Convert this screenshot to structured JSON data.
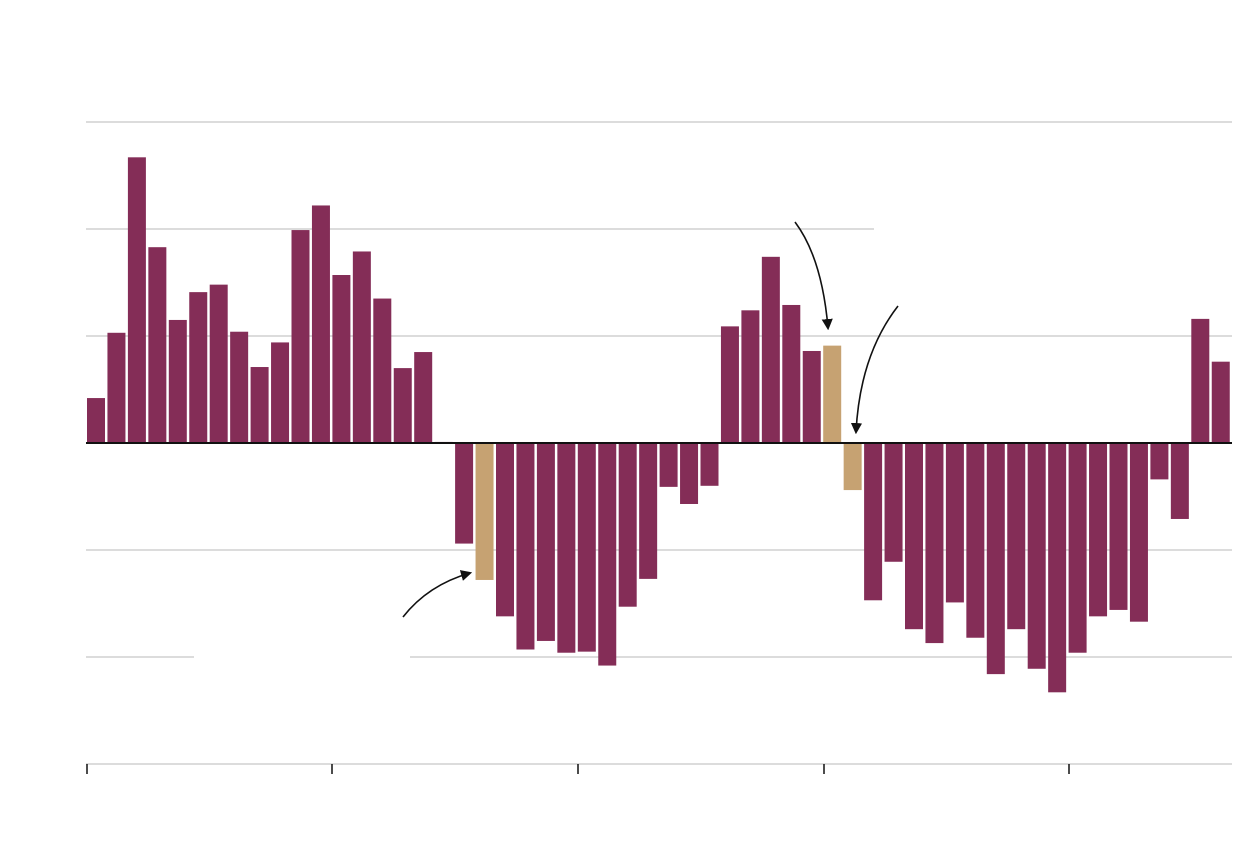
{
  "chart_data": {
    "type": "bar",
    "title": "",
    "xlabel": "",
    "ylabel": "",
    "ylim": [
      -3,
      3
    ],
    "grid": true,
    "legend": "none",
    "colors": {
      "primary": "#842d57",
      "highlight": "#c6a272",
      "grid": "#d0d0d0",
      "zero_line": "#111111"
    },
    "x_tick_labels": [
      "",
      "",
      "",
      "",
      ""
    ],
    "gridline_values": [
      -2,
      -1,
      1,
      2,
      3
    ],
    "values": [
      0.42,
      1.03,
      2.67,
      1.83,
      1.15,
      1.41,
      1.48,
      1.04,
      0.71,
      0.94,
      1.99,
      2.22,
      1.57,
      1.79,
      1.35,
      0.7,
      0.85,
      0.01,
      -0.94,
      -1.28,
      -1.62,
      -1.93,
      -1.85,
      -1.96,
      -1.95,
      -2.08,
      -1.53,
      -1.27,
      -0.41,
      -0.57,
      -0.4,
      1.09,
      1.24,
      1.74,
      1.29,
      0.86,
      0.91,
      -0.44,
      -1.47,
      -1.11,
      -1.74,
      -1.87,
      -1.49,
      -1.82,
      -2.16,
      -1.74,
      -2.11,
      -2.33,
      -1.96,
      -1.62,
      -1.56,
      -1.67,
      -0.34,
      -0.71,
      1.16,
      0.76
    ],
    "highlighted_indices": [
      19,
      36,
      37
    ],
    "annotations": [
      {
        "text": "",
        "target_index": 19
      },
      {
        "text": "",
        "target_index": 36
      },
      {
        "text": "",
        "target_index": 37
      }
    ]
  }
}
